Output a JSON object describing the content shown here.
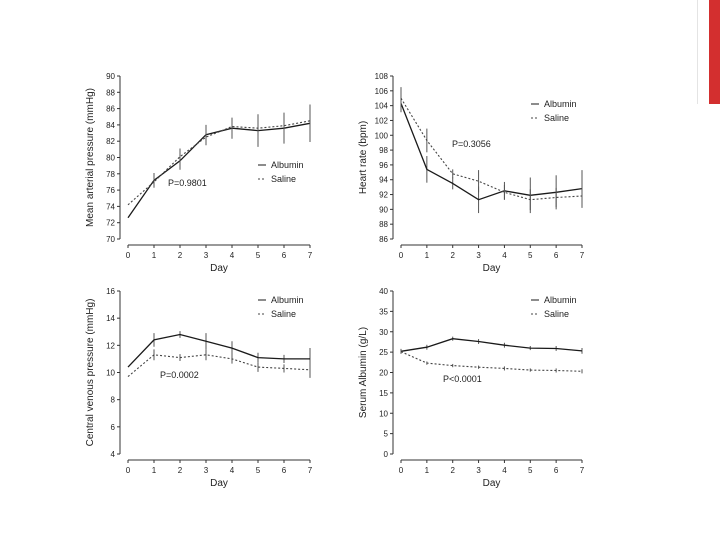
{
  "colors": {
    "accent": "#d32f2f",
    "ink": "#222222"
  },
  "chart_data": [
    {
      "id": "map",
      "type": "line",
      "xlabel": "Day",
      "ylabel": "Mean arterial pressure (mmHg)",
      "x": [
        0,
        1,
        2,
        3,
        4,
        5,
        6,
        7
      ],
      "xticks": [
        "0",
        "1",
        "2",
        "3",
        "4",
        "5",
        "6",
        "7"
      ],
      "ylim": [
        70,
        90
      ],
      "yticks": [
        "70",
        "72",
        "74",
        "76",
        "78",
        "80",
        "82",
        "84",
        "86",
        "88",
        "90"
      ],
      "annotation": "P=0.9801",
      "legend": [
        "Albumin",
        "Saline"
      ],
      "series": [
        {
          "name": "Albumin",
          "values": [
            72.6,
            77.2,
            79.6,
            82.8,
            83.6,
            83.3,
            83.6,
            84.2
          ],
          "errors": [
            0,
            0.9,
            1.1,
            1.2,
            1.3,
            2.0,
            1.9,
            2.3
          ]
        },
        {
          "name": "Saline",
          "values": [
            74.2,
            77.0,
            80.1,
            82.5,
            83.8,
            83.6,
            83.9,
            84.5
          ],
          "errors": [
            0,
            0.7,
            1.0,
            1.0,
            1.0,
            1.1,
            1.2,
            1.4
          ]
        }
      ]
    },
    {
      "id": "hr",
      "type": "line",
      "xlabel": "Day",
      "ylabel": "Heart rate (bpm)",
      "x": [
        0,
        1,
        2,
        3,
        4,
        5,
        6,
        7
      ],
      "xticks": [
        "0",
        "1",
        "2",
        "3",
        "4",
        "5",
        "6",
        "7"
      ],
      "ylim": [
        86,
        108
      ],
      "yticks": [
        "86",
        "88",
        "90",
        "92",
        "94",
        "96",
        "98",
        "100",
        "102",
        "104",
        "106",
        "108"
      ],
      "annotation": "P=0.3056",
      "legend": [
        "Albumin",
        "Saline"
      ],
      "series": [
        {
          "name": "Albumin",
          "values": [
            104.3,
            95.4,
            93.5,
            91.3,
            92.5,
            91.9,
            92.3,
            92.8
          ],
          "errors": [
            1.2,
            1.8,
            0.8,
            1.8,
            1.2,
            2.4,
            2.3,
            2.5
          ]
        },
        {
          "name": "Saline",
          "values": [
            105.0,
            99.3,
            94.8,
            93.8,
            92.3,
            91.3,
            91.6,
            91.8
          ],
          "errors": [
            1.5,
            1.6,
            0.6,
            1.5,
            1.0,
            1.4,
            1.3,
            1.6
          ]
        }
      ]
    },
    {
      "id": "cvp",
      "type": "line",
      "xlabel": "Day",
      "ylabel": "Central venous pressure (mmHg)",
      "x": [
        0,
        1,
        2,
        3,
        4,
        5,
        6,
        7
      ],
      "xticks": [
        "0",
        "1",
        "2",
        "3",
        "4",
        "5",
        "6",
        "7"
      ],
      "ylim": [
        4,
        16
      ],
      "yticks": [
        "4",
        "6",
        "8",
        "10",
        "12",
        "14",
        "16"
      ],
      "annotation": "P=0.0002",
      "legend": [
        "Albumin",
        "Saline"
      ],
      "series": [
        {
          "name": "Albumin",
          "values": [
            10.4,
            12.4,
            12.8,
            12.3,
            11.8,
            11.1,
            11.0,
            11.0
          ],
          "errors": [
            0,
            0.5,
            0.25,
            0.6,
            0.5,
            0.35,
            0.3,
            0.8
          ]
        },
        {
          "name": "Saline",
          "values": [
            9.7,
            11.3,
            11.1,
            11.3,
            11.0,
            10.4,
            10.3,
            10.2
          ],
          "errors": [
            0,
            0.4,
            0.25,
            0.4,
            0.35,
            0.35,
            0.3,
            0.6
          ]
        }
      ]
    },
    {
      "id": "alb",
      "type": "line",
      "xlabel": "Day",
      "ylabel": "Serum Albumin (g/L)",
      "x": [
        0,
        1,
        2,
        3,
        4,
        5,
        6,
        7
      ],
      "xticks": [
        "0",
        "1",
        "2",
        "3",
        "4",
        "5",
        "6",
        "7"
      ],
      "ylim": [
        0,
        40
      ],
      "yticks": [
        "0",
        "5",
        "10",
        "15",
        "20",
        "25",
        "30",
        "35",
        "40"
      ],
      "annotation": "P<0.0001",
      "legend": [
        "Albumin",
        "Saline"
      ],
      "series": [
        {
          "name": "Albumin",
          "values": [
            25.2,
            26.2,
            28.3,
            27.6,
            26.7,
            26.0,
            25.9,
            25.3
          ],
          "errors": [
            0.6,
            0.6,
            0.5,
            0.6,
            0.6,
            0.5,
            0.6,
            0.7
          ]
        },
        {
          "name": "Saline",
          "values": [
            25.1,
            22.3,
            21.7,
            21.3,
            21.0,
            20.6,
            20.5,
            20.3
          ],
          "errors": [
            0.5,
            0.4,
            0.4,
            0.4,
            0.5,
            0.4,
            0.5,
            0.5
          ]
        }
      ]
    }
  ]
}
